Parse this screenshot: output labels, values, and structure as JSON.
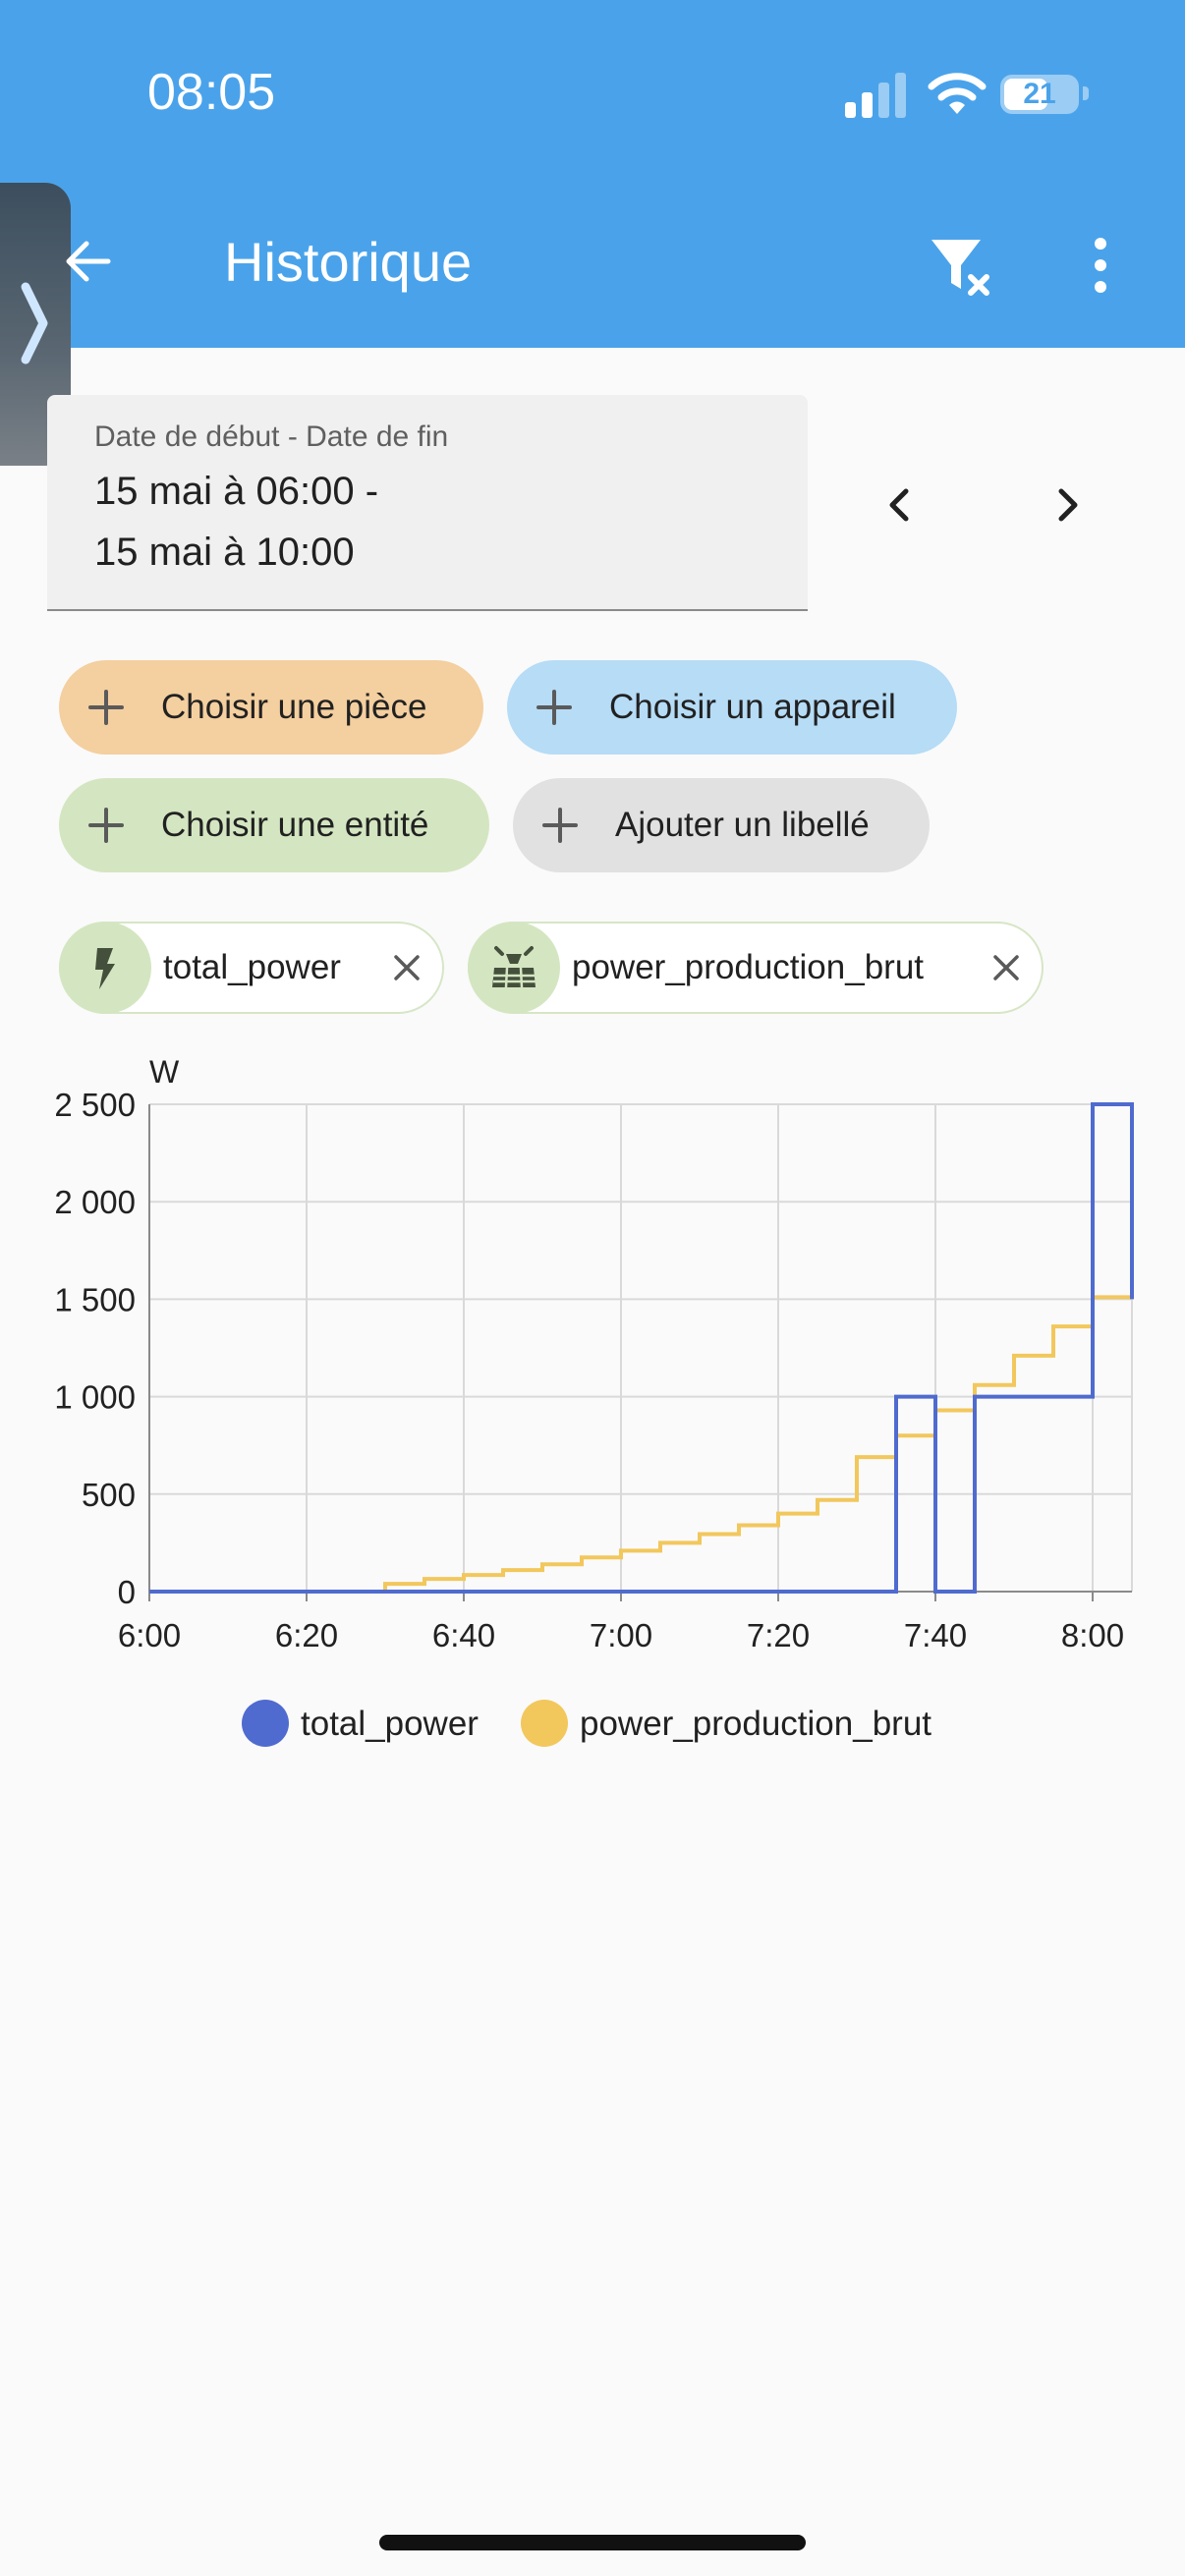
{
  "status_bar": {
    "time": "08:05",
    "battery": "21"
  },
  "header": {
    "title": "Historique"
  },
  "date_range": {
    "label": "Date de début - Date de fin",
    "start": "15 mai à 06:00 -",
    "end": "15 mai à 10:00"
  },
  "targets": {
    "area": "Choisir une pièce",
    "device": "Choisir un appareil",
    "entity": "Choisir une entité",
    "label": "Ajouter un libellé"
  },
  "entities": [
    {
      "name": "total_power",
      "icon": "lightning-bolt-icon"
    },
    {
      "name": "power_production_brut",
      "icon": "solar-panel-icon"
    }
  ],
  "colors": {
    "header": "#4aa3ea",
    "total_power": "#4f6bcf",
    "power_production_brut": "#f2c75c"
  },
  "chart_data": {
    "type": "line",
    "step": true,
    "unit": "W",
    "x_tick_labels": [
      "6:00",
      "6:20",
      "6:40",
      "7:00",
      "7:20",
      "7:40",
      "8:00"
    ],
    "y_tick_labels": [
      "0",
      "500",
      "1 000",
      "1 500",
      "2 000",
      "2 500"
    ],
    "xlim": [
      "6:00",
      "8:05"
    ],
    "ylim": [
      0,
      2500
    ],
    "grid": true,
    "legend": "bottom",
    "series": [
      {
        "name": "total_power",
        "color": "#4f6bcf",
        "points": [
          [
            "6:00",
            0
          ],
          [
            "7:35",
            1000
          ],
          [
            "7:40",
            0
          ],
          [
            "7:45",
            1000
          ],
          [
            "8:00",
            2500
          ],
          [
            "8:05",
            1500
          ]
        ]
      },
      {
        "name": "power_production_brut",
        "color": "#f2c75c",
        "points": [
          [
            "6:00",
            0
          ],
          [
            "6:30",
            40
          ],
          [
            "6:35",
            65
          ],
          [
            "6:40",
            85
          ],
          [
            "6:45",
            110
          ],
          [
            "6:50",
            140
          ],
          [
            "6:55",
            175
          ],
          [
            "7:00",
            210
          ],
          [
            "7:05",
            250
          ],
          [
            "7:10",
            295
          ],
          [
            "7:15",
            340
          ],
          [
            "7:20",
            400
          ],
          [
            "7:25",
            470
          ],
          [
            "7:30",
            690
          ],
          [
            "7:35",
            800
          ],
          [
            "7:40",
            930
          ],
          [
            "7:45",
            1060
          ],
          [
            "7:50",
            1210
          ],
          [
            "7:55",
            1360
          ],
          [
            "8:00",
            1510
          ],
          [
            "8:05",
            1660
          ]
        ]
      }
    ]
  }
}
